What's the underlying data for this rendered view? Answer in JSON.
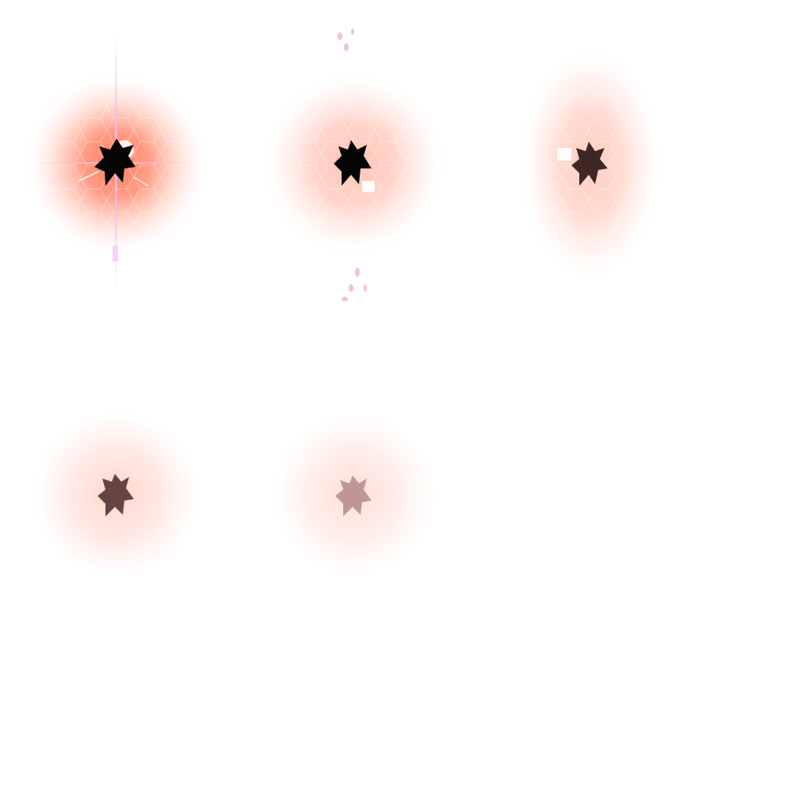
{
  "sprite_sheet": {
    "background": "#ffffff",
    "accent_glow": "#ff6e55",
    "core_color": "#050505",
    "frames": [
      {
        "name": "frame-1",
        "glow_opacity": 1.0,
        "core_opacity": 1.0,
        "shape": "round",
        "has_flare": true,
        "has_hex": true,
        "has_particles": true
      },
      {
        "name": "frame-2",
        "glow_opacity": 0.75,
        "core_opacity": 1.0,
        "shape": "round",
        "has_flare": false,
        "has_hex": true,
        "has_particles": true
      },
      {
        "name": "frame-3",
        "glow_opacity": 0.65,
        "core_opacity": 0.8,
        "shape": "oval",
        "has_flare": false,
        "has_hex": true,
        "has_particles": false
      },
      {
        "name": "frame-4",
        "glow_opacity": 0.45,
        "core_opacity": 0.6,
        "shape": "round",
        "has_flare": false,
        "has_hex": false,
        "has_particles": false
      },
      {
        "name": "frame-5",
        "glow_opacity": 0.3,
        "core_opacity": 0.35,
        "shape": "round",
        "has_flare": false,
        "has_hex": false,
        "has_particles": false
      }
    ]
  }
}
